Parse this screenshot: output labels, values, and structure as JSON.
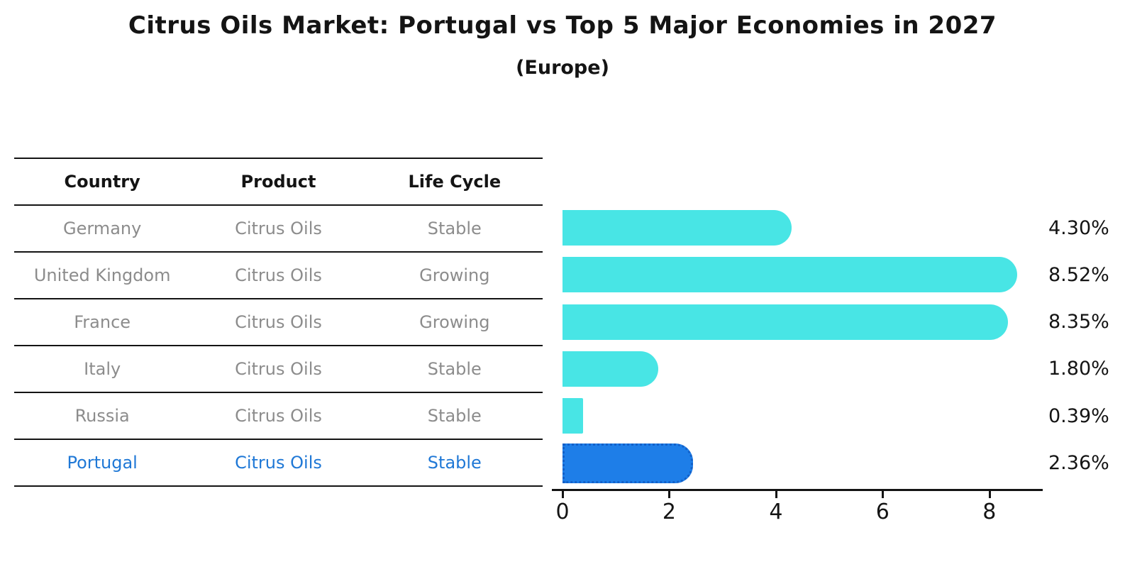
{
  "title": "Citrus Oils Market: Portugal vs Top 5 Major Economies in 2027",
  "subtitle": "(Europe)",
  "table": {
    "headers": [
      "Country",
      "Product",
      "Life Cycle"
    ],
    "rows": [
      {
        "country": "Germany",
        "product": "Citrus Oils",
        "life_cycle": "Stable",
        "highlight": false
      },
      {
        "country": "United Kingdom",
        "product": "Citrus Oils",
        "life_cycle": "Growing",
        "highlight": false
      },
      {
        "country": "France",
        "product": "Citrus Oils",
        "life_cycle": "Growing",
        "highlight": false
      },
      {
        "country": "Italy",
        "product": "Citrus Oils",
        "life_cycle": "Stable",
        "highlight": false
      },
      {
        "country": "Russia",
        "product": "Citrus Oils",
        "life_cycle": "Stable",
        "highlight": true
      }
    ],
    "highlight_row": {
      "country": "Portugal",
      "product": "Citrus Oils",
      "life_cycle": "Stable"
    }
  },
  "chart_data": {
    "type": "bar",
    "orientation": "horizontal",
    "title": "Citrus Oils Market: Portugal vs Top 5 Major Economies in 2027",
    "subtitle": "(Europe)",
    "categories": [
      "Germany",
      "United Kingdom",
      "France",
      "Italy",
      "Russia",
      "Portugal"
    ],
    "values": [
      4.3,
      8.52,
      8.35,
      1.8,
      0.39,
      2.36
    ],
    "value_labels": [
      "4.30%",
      "8.52%",
      "8.35%",
      "1.80%",
      "0.39%",
      "2.36%"
    ],
    "highlight_index": 5,
    "x_ticks": [
      0,
      2,
      4,
      6,
      8
    ],
    "xlim": [
      0,
      9
    ],
    "grid": false,
    "legend": "none",
    "colors": {
      "bar": "#48e5e5",
      "highlight_bar": "#1e7ee8",
      "highlight_border": "#1360c8",
      "highlight_text": "#1f78d6",
      "table_text": "#8c8c8c",
      "axis": "#141414"
    }
  }
}
